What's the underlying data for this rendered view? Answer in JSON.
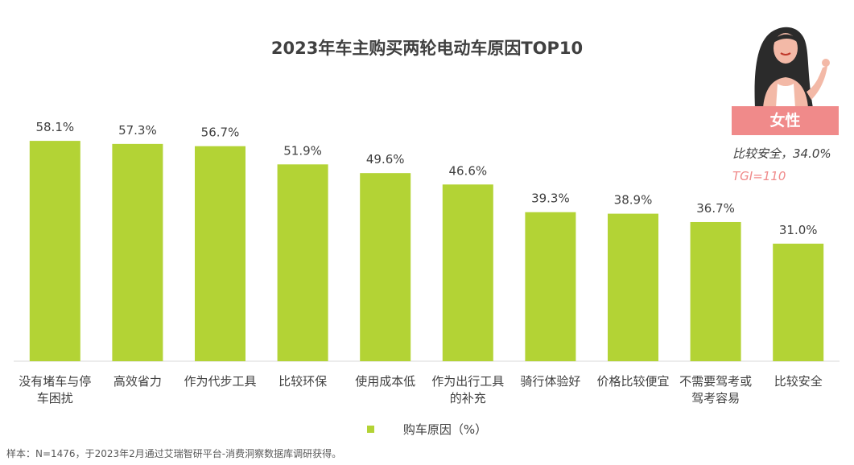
{
  "chart_data": {
    "type": "bar",
    "title": "2023年车主购买两轮电动车原因TOP10",
    "categories": [
      "没有堵车与停车困扰",
      "高效省力",
      "作为代步工具",
      "比较环保",
      "使用成本低",
      "作为出行工具的补充",
      "骑行体验好",
      "价格比较便宜",
      "不需要驾考或驾考容易",
      "比较安全"
    ],
    "category_lines": [
      [
        "没有堵车与停",
        "车困扰"
      ],
      [
        "高效省力"
      ],
      [
        "作为代步工具"
      ],
      [
        "比较环保"
      ],
      [
        "使用成本低"
      ],
      [
        "作为出行工具",
        "的补充"
      ],
      [
        "骑行体验好"
      ],
      [
        "价格比较便宜"
      ],
      [
        "不需要驾考或",
        "驾考容易"
      ],
      [
        "比较安全"
      ]
    ],
    "series": [
      {
        "name": "购车原因（%）",
        "values": [
          58.1,
          57.3,
          56.7,
          51.9,
          49.6,
          46.6,
          39.3,
          38.9,
          36.7,
          31.0
        ]
      }
    ],
    "value_labels": [
      "58.1%",
      "57.3%",
      "56.7%",
      "51.9%",
      "49.6%",
      "46.6%",
      "39.3%",
      "38.9%",
      "36.7%",
      "31.0%"
    ],
    "ylim": [
      0,
      70
    ],
    "grid": false,
    "legend_position": "bottom",
    "bar_color": "#b3d335"
  },
  "legend": {
    "label": "购车原因（%）"
  },
  "source": "样本：N=1476，于2023年2月通过艾瑞智研平台-消费洞察数据库调研获得。",
  "callout": {
    "badge": "女性",
    "note": "比较安全，34.0%",
    "tgi": "TGI=110",
    "badge_color": "#f08a8a",
    "icon": "woman-illustration"
  }
}
